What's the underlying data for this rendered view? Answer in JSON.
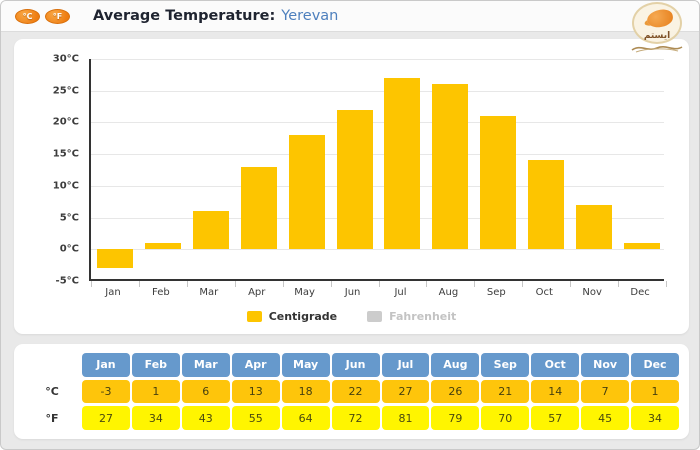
{
  "header": {
    "celsius_button": "°C",
    "fahrenheit_button": "°F",
    "title": "Average Temperature:",
    "city": "Yerevan",
    "logo_text": "ايستم"
  },
  "chart_data": {
    "type": "bar",
    "title": "Average Temperature: Yerevan",
    "categories": [
      "Jan",
      "Feb",
      "Mar",
      "Apr",
      "May",
      "Jun",
      "Jul",
      "Aug",
      "Sep",
      "Oct",
      "Nov",
      "Dec"
    ],
    "series": [
      {
        "name": "Centigrade",
        "values": [
          -3,
          1,
          6,
          13,
          18,
          22,
          27,
          26,
          21,
          14,
          7,
          1
        ],
        "color": "#FDC500",
        "visible": true
      },
      {
        "name": "Fahrenheit",
        "values": [
          27,
          34,
          43,
          55,
          64,
          72,
          81,
          79,
          70,
          57,
          45,
          34
        ],
        "color": "#CCCCCC",
        "visible": false
      }
    ],
    "xlabel": "",
    "ylabel": "",
    "ylim": [
      -5,
      30
    ],
    "ytick_step": 5,
    "ytick_suffix": "°C",
    "grid": true,
    "legend_position": "bottom"
  },
  "table": {
    "row_labels": [
      "°C",
      "°F"
    ],
    "columns": [
      "Jan",
      "Feb",
      "Mar",
      "Apr",
      "May",
      "Jun",
      "Jul",
      "Aug",
      "Sep",
      "Oct",
      "Nov",
      "Dec"
    ],
    "celsius": [
      -3,
      1,
      6,
      13,
      18,
      22,
      27,
      26,
      21,
      14,
      7,
      1
    ],
    "fahrenheit": [
      27,
      34,
      43,
      55,
      64,
      72,
      81,
      79,
      70,
      57,
      45,
      34
    ]
  },
  "colors": {
    "bar_gold": "#FDC500",
    "table_header_blue": "#6699CC",
    "celsius_cell_gold": "#FEC50B",
    "fahrenheit_cell_yellow": "#FFF500",
    "city_blue": "#4D7FBD",
    "button_orange": "#EE7D12",
    "disabled_gray": "#C3C3C3"
  }
}
